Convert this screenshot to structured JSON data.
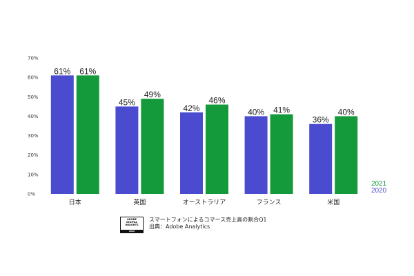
{
  "chart_data": {
    "type": "bar",
    "categories": [
      "日本",
      "英国",
      "オーストラリア",
      "フランス",
      "米国"
    ],
    "series": [
      {
        "name": "2020",
        "values": [
          61,
          45,
          42,
          40,
          36
        ],
        "color": "#4b4bcf"
      },
      {
        "name": "2021",
        "values": [
          61,
          49,
          46,
          41,
          40
        ],
        "color": "#149a3a"
      }
    ],
    "value_labels": {
      "2020": [
        "61%",
        "45%",
        "42%",
        "40%",
        "36%"
      ],
      "2021": [
        "61%",
        "49%",
        "46%",
        "41%",
        "40%"
      ]
    },
    "yticks": [
      "0%",
      "10%",
      "20%",
      "30%",
      "40%",
      "50%",
      "60%",
      "70%"
    ],
    "ylim": [
      0,
      70
    ],
    "grid": false,
    "legend_position": "bottom-right",
    "title": "",
    "xlabel": "",
    "ylabel": ""
  },
  "footer": {
    "line1": "スマートフォンによるコマース売上高の割合Q1",
    "line2": "出典：Adobe Analytics",
    "logo": {
      "line1": "ADOBE",
      "line2": "DIGITAL",
      "line3": "INSIGHTS",
      "year": "2020"
    }
  }
}
